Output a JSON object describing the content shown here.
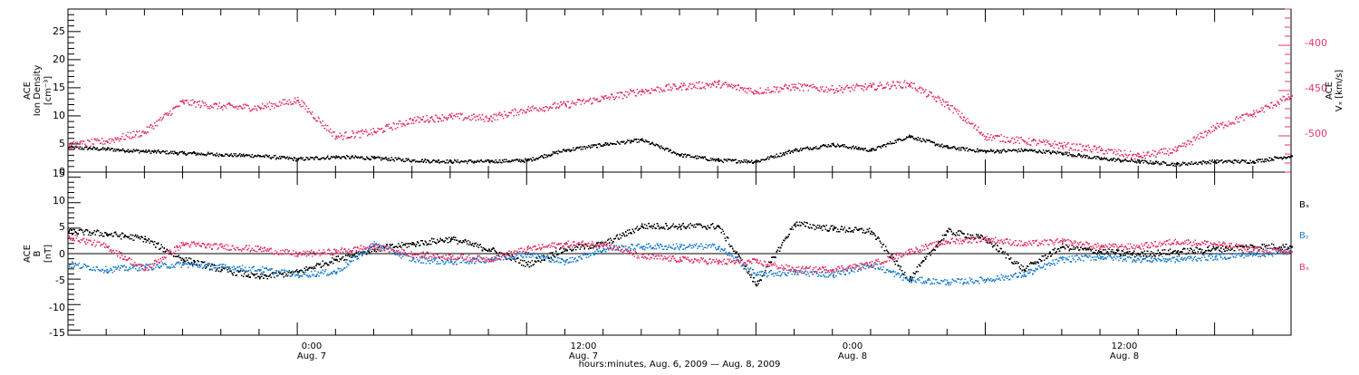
{
  "colors": {
    "black": "#000000",
    "blue": "#1f7fd0",
    "red": "#e8376a"
  },
  "chart_data": [
    {
      "type": "scatter",
      "panel": "top",
      "ylabel_left": [
        "ACE",
        "Ion Density",
        "[cm⁻³]"
      ],
      "ylabel_right": [
        "ACE",
        "Vₓ [km/s]"
      ],
      "ylim_left": [
        0,
        29
      ],
      "ylim_right": [
        -540,
        -360
      ],
      "left_ticks": [
        "0",
        "5",
        "10",
        "15",
        "20",
        "25"
      ],
      "right_ticks": [
        "-400",
        "-450",
        "-500"
      ],
      "series": [
        {
          "color": "black",
          "axis": "left",
          "x": [
            0,
            2,
            4,
            6,
            8,
            10,
            12,
            14,
            16,
            18,
            20,
            22,
            24,
            26,
            28,
            30,
            32,
            34,
            36,
            38,
            40,
            42,
            44,
            46,
            48,
            50,
            52,
            54,
            56,
            58,
            60,
            62,
            64
          ],
          "y": [
            4.5,
            4.2,
            3.8,
            3.5,
            3.2,
            3.0,
            2.4,
            2.8,
            2.6,
            2.2,
            2.0,
            2.0,
            2.2,
            4.0,
            5.0,
            5.8,
            3.2,
            2.2,
            2.0,
            4.0,
            5.0,
            4.0,
            6.5,
            4.5,
            3.8,
            4.0,
            3.5,
            2.5,
            2.0,
            1.5,
            2.0,
            2.0,
            3.0
          ]
        },
        {
          "color": "red",
          "axis": "right",
          "x": [
            0,
            2,
            4,
            6,
            8,
            10,
            12,
            14,
            16,
            18,
            20,
            22,
            24,
            26,
            28,
            30,
            32,
            34,
            36,
            38,
            40,
            42,
            44,
            46,
            48,
            50,
            52,
            54,
            56,
            58,
            60,
            62,
            64
          ],
          "y": [
            -510,
            -505,
            -495,
            -462,
            -467,
            -468,
            -460,
            -500,
            -495,
            -482,
            -478,
            -480,
            -470,
            -465,
            -458,
            -450,
            -445,
            -442,
            -450,
            -445,
            -448,
            -445,
            -442,
            -465,
            -500,
            -505,
            -510,
            -515,
            -522,
            -515,
            -490,
            -475,
            -455
          ]
        }
      ]
    },
    {
      "type": "scatter",
      "panel": "bottom",
      "ylabel_left": [
        "ACE",
        "B",
        "[nT]"
      ],
      "ylim": [
        -16,
        16
      ],
      "left_ticks": [
        "15",
        "10",
        "5",
        "0",
        "-5",
        "-10",
        "-15"
      ],
      "legend": [
        "Bₓ",
        "Bᵧ",
        "Bₓ"
      ],
      "series": [
        {
          "name": "Bₓ",
          "color": "black",
          "x": [
            0,
            2,
            4,
            6,
            8,
            10,
            12,
            14,
            16,
            18,
            20,
            22,
            24,
            26,
            28,
            30,
            32,
            34,
            36,
            38,
            40,
            42,
            44,
            46,
            48,
            50,
            52,
            54,
            56,
            58,
            60,
            62,
            64
          ],
          "y": [
            4.5,
            4.0,
            3.0,
            -1.0,
            -3.0,
            -4.5,
            -3.5,
            -1.0,
            1.0,
            2.0,
            3.0,
            1.0,
            -2.0,
            1.0,
            2.0,
            5.5,
            5.5,
            5.5,
            -6.0,
            6.0,
            5.0,
            4.5,
            -5.0,
            4.5,
            3.0,
            -3.0,
            1.5,
            0.5,
            0.0,
            0.5,
            1.0,
            1.5,
            1.5
          ]
        },
        {
          "name": "Bᵧ",
          "color": "blue",
          "x": [
            0,
            2,
            4,
            6,
            8,
            10,
            12,
            14,
            16,
            18,
            20,
            22,
            24,
            26,
            28,
            30,
            32,
            34,
            36,
            38,
            40,
            42,
            44,
            46,
            48,
            50,
            52,
            54,
            56,
            58,
            60,
            62,
            64
          ],
          "y": [
            -2.0,
            -3.0,
            -2.5,
            -2.0,
            -2.5,
            -3.0,
            -4.0,
            -3.5,
            2.0,
            -1.0,
            -1.5,
            -1.0,
            0.0,
            -1.5,
            1.0,
            1.5,
            1.5,
            1.5,
            -4.0,
            -3.5,
            -4.0,
            -2.0,
            -5.0,
            -5.5,
            -5.0,
            -4.0,
            -1.0,
            -0.5,
            -1.0,
            -1.0,
            -0.5,
            0.0,
            0.5
          ]
        },
        {
          "name": "Bₓ",
          "color": "red",
          "x": [
            0,
            2,
            4,
            6,
            8,
            10,
            12,
            14,
            16,
            18,
            20,
            22,
            24,
            26,
            28,
            30,
            32,
            34,
            36,
            38,
            40,
            42,
            44,
            46,
            48,
            50,
            52,
            54,
            56,
            58,
            60,
            62,
            64
          ],
          "y": [
            3.5,
            1.5,
            -3.0,
            2.0,
            1.5,
            1.0,
            0.0,
            0.5,
            1.5,
            0.0,
            -0.5,
            -1.0,
            1.0,
            2.0,
            2.0,
            -0.5,
            -1.0,
            -1.5,
            -1.5,
            -3.0,
            -3.0,
            -2.0,
            0.5,
            2.5,
            3.0,
            2.0,
            2.5,
            1.5,
            1.5,
            2.5,
            2.0,
            1.0,
            0.5
          ]
        }
      ]
    }
  ],
  "x_axis": {
    "range": [
      0,
      64
    ],
    "labels": [
      {
        "x": 12,
        "time": "0:00",
        "date": "Aug. 7"
      },
      {
        "x": 26,
        "time": "12:00",
        "date": "Aug. 7"
      },
      {
        "x": 40,
        "time": "0:00",
        "date": "Aug. 8"
      },
      {
        "x": 54,
        "time": "12:00",
        "date": "Aug. 8"
      }
    ],
    "title": "hours:minutes, Aug.  6, 2009 — Aug.  8, 2009"
  }
}
